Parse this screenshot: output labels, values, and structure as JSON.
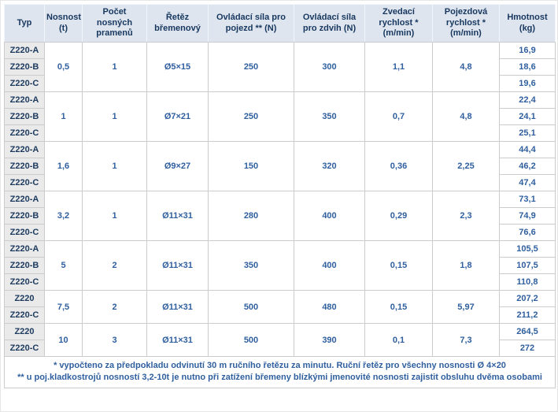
{
  "colors": {
    "header_bg": "#dee5ef",
    "header_text": "#17375e",
    "type_cell_bg": "#eaeaea",
    "type_cell_text": "#1c3a5e",
    "value_text": "#2f5f9e",
    "border": "#cccccc",
    "page_bg": "#ffffff"
  },
  "table": {
    "headers": [
      "Typ",
      "Nosnost (t)",
      "Počet nosných pramenů",
      "Řetěz břemenový",
      "Ovládací síla pro pojezd ** (N)",
      "Ovládací síla pro zdvih (N)",
      "Zvedací rychlost * (m/min)",
      "Pojezdová rychlost * (m/min)",
      "Hmotnost (kg)"
    ],
    "groups": [
      {
        "types": [
          "Z220-A",
          "Z220-B",
          "Z220-C"
        ],
        "nosnost": "0,5",
        "prameny": "1",
        "retez": "Ø5×15",
        "pojezd": "250",
        "zdvih": "300",
        "zvedaci": "1,1",
        "pojezdova": "4,8",
        "hmotnost": [
          "16,9",
          "18,6",
          "19,6"
        ]
      },
      {
        "types": [
          "Z220-A",
          "Z220-B",
          "Z220-C"
        ],
        "nosnost": "1",
        "prameny": "1",
        "retez": "Ø7×21",
        "pojezd": "250",
        "zdvih": "350",
        "zvedaci": "0,7",
        "pojezdova": "4,8",
        "hmotnost": [
          "22,4",
          "24,1",
          "25,1"
        ]
      },
      {
        "types": [
          "Z220-A",
          "Z220-B",
          "Z220-C"
        ],
        "nosnost": "1,6",
        "prameny": "1",
        "retez": "Ø9×27",
        "pojezd": "150",
        "zdvih": "320",
        "zvedaci": "0,36",
        "pojezdova": "2,25",
        "hmotnost": [
          "44,4",
          "46,2",
          "47,4"
        ]
      },
      {
        "types": [
          "Z220-A",
          "Z220-B",
          "Z220-C"
        ],
        "nosnost": "3,2",
        "prameny": "1",
        "retez": "Ø11×31",
        "pojezd": "280",
        "zdvih": "400",
        "zvedaci": "0,29",
        "pojezdova": "2,3",
        "hmotnost": [
          "73,1",
          "74,9",
          "76,6"
        ]
      },
      {
        "types": [
          "Z220-A",
          "Z220-B",
          "Z220-C"
        ],
        "nosnost": "5",
        "prameny": "2",
        "retez": "Ø11×31",
        "pojezd": "350",
        "zdvih": "400",
        "zvedaci": "0,15",
        "pojezdova": "1,8",
        "hmotnost": [
          "105,5",
          "107,5",
          "110,8"
        ]
      },
      {
        "types": [
          "Z220",
          "Z220-C"
        ],
        "nosnost": "7,5",
        "prameny": "2",
        "retez": "Ø11×31",
        "pojezd": "500",
        "zdvih": "480",
        "zvedaci": "0,15",
        "pojezdova": "5,97",
        "hmotnost": [
          "207,2",
          "211,2"
        ]
      },
      {
        "types": [
          "Z220",
          "Z220-C"
        ],
        "nosnost": "10",
        "prameny": "3",
        "retez": "Ø11×31",
        "pojezd": "500",
        "zdvih": "390",
        "zvedaci": "0,1",
        "pojezdova": "7,3",
        "hmotnost": [
          "264,5",
          "272"
        ]
      }
    ],
    "footnotes": [
      "* vypočteno za předpokladu odvinutí 30 m ručního řetězu za minutu. Ruční řetěz pro všechny nosnosti Ø 4×20",
      "** u poj.kladkostrojů nosností 3,2-10t je nutno při zatížení břemeny blízkými jmenovité nosnosti zajistit obsluhu dvěma osobami"
    ]
  }
}
